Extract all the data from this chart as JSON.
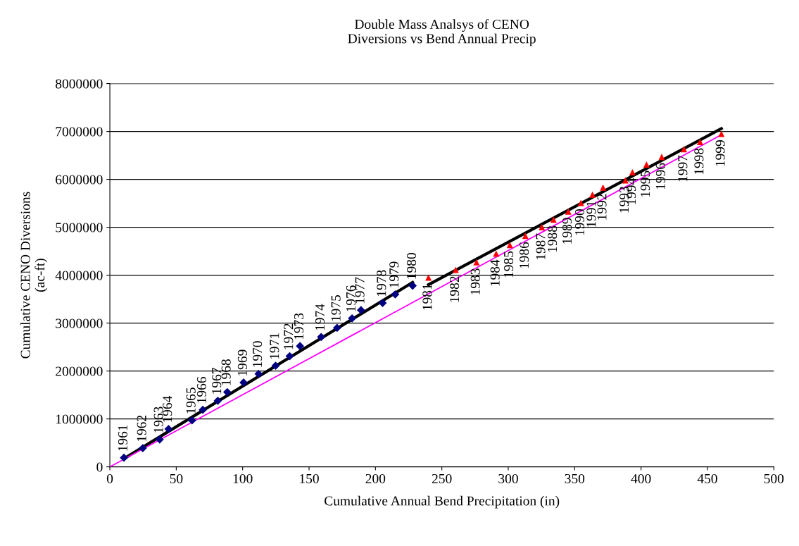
{
  "chart_data": {
    "type": "scatter",
    "title": "Double Mass Analsys of CENO\nDiversions vs Bend Annual Precip",
    "xlabel": "Cumulative Annual Bend Precipitation (in)",
    "ylabel": "Cumulative CENO Diversions\n(ac-ft)",
    "series": [
      {
        "color": "#000080",
        "marker": "diamond",
        "x": [
          10.6,
          24.8,
          37.5,
          44.2,
          61.9,
          70.0,
          81.3,
          88.4,
          100.7,
          112.0,
          124.8,
          135.4,
          143.2,
          159.1,
          171.1,
          182.4,
          189.1,
          205.4,
          214.9,
          228.0
        ],
        "values": [
          190000,
          390000,
          570000,
          790000,
          970000,
          1190000,
          1380000,
          1560000,
          1760000,
          1940000,
          2110000,
          2310000,
          2520000,
          2710000,
          2900000,
          3100000,
          3270000,
          3420000,
          3600000,
          3780000
        ]
      },
      {
        "color": "#ff0000",
        "marker": "triangle",
        "x": [
          239.9,
          260.4,
          276.1,
          290.9,
          301.2,
          312.9,
          325.3,
          334.1,
          345.2,
          354.7,
          363.4,
          371.4,
          388.2,
          393.5,
          404.1,
          415.6,
          432.3,
          444.5,
          460.5
        ],
        "values": [
          3950000,
          4110000,
          4270000,
          4450000,
          4630000,
          4820000,
          5000000,
          5160000,
          5330000,
          5510000,
          5680000,
          5830000,
          5980000,
          6150000,
          6310000,
          6470000,
          6630000,
          6780000,
          6950000
        ]
      },
      {
        "type": "line",
        "color": "#000000",
        "x": [
          10.6,
          228.0
        ],
        "values": [
          170000,
          3850000
        ]
      },
      {
        "type": "line",
        "color": "#000000",
        "x": [
          239.9,
          460.5
        ],
        "values": [
          3800000,
          7060000
        ]
      },
      {
        "type": "line",
        "color": "#ff00ff",
        "x": [
          0,
          460.5
        ],
        "values": [
          0,
          6930000
        ]
      }
    ],
    "annotations": [
      {
        "text": "1961",
        "x": 10.6,
        "y": 190000
      },
      {
        "text": "1962",
        "x": 24.8,
        "y": 390000
      },
      {
        "text": "1963",
        "x": 37.5,
        "y": 570000
      },
      {
        "text": "1964",
        "x": 44.2,
        "y": 790000
      },
      {
        "text": "1965",
        "x": 61.9,
        "y": 970000
      },
      {
        "text": "1966",
        "x": 70.0,
        "y": 1190000
      },
      {
        "text": "1967",
        "x": 81.3,
        "y": 1380000
      },
      {
        "text": "1968",
        "x": 88.4,
        "y": 1560000
      },
      {
        "text": "1969",
        "x": 100.7,
        "y": 1760000
      },
      {
        "text": "1970",
        "x": 112.0,
        "y": 1940000
      },
      {
        "text": "1971",
        "x": 124.8,
        "y": 2110000
      },
      {
        "text": "1972",
        "x": 135.4,
        "y": 2310000
      },
      {
        "text": "1973",
        "x": 143.2,
        "y": 2520000
      },
      {
        "text": "1974",
        "x": 159.1,
        "y": 2710000
      },
      {
        "text": "1975",
        "x": 171.1,
        "y": 2900000
      },
      {
        "text": "1976",
        "x": 182.4,
        "y": 3100000
      },
      {
        "text": "1977",
        "x": 189.1,
        "y": 3270000
      },
      {
        "text": "1978",
        "x": 205.4,
        "y": 3420000
      },
      {
        "text": "1979",
        "x": 214.9,
        "y": 3600000
      },
      {
        "text": "1980",
        "x": 228.0,
        "y": 3780000
      },
      {
        "text": "1981",
        "x": 239.9,
        "y": 3950000
      },
      {
        "text": "1982",
        "x": 260.4,
        "y": 4110000
      },
      {
        "text": "1983",
        "x": 276.1,
        "y": 4270000
      },
      {
        "text": "1984",
        "x": 290.9,
        "y": 4450000
      },
      {
        "text": "1985",
        "x": 301.2,
        "y": 4630000
      },
      {
        "text": "1986",
        "x": 312.9,
        "y": 4820000
      },
      {
        "text": "1987",
        "x": 325.3,
        "y": 5000000
      },
      {
        "text": "1988",
        "x": 334.1,
        "y": 5160000
      },
      {
        "text": "1989",
        "x": 345.2,
        "y": 5330000
      },
      {
        "text": "1990",
        "x": 354.7,
        "y": 5510000
      },
      {
        "text": "1991",
        "x": 363.4,
        "y": 5680000
      },
      {
        "text": "1992",
        "x": 371.4,
        "y": 5830000
      },
      {
        "text": "1993",
        "x": 388.2,
        "y": 5980000
      },
      {
        "text": "1994",
        "x": 393.5,
        "y": 6150000
      },
      {
        "text": "1995",
        "x": 404.1,
        "y": 6310000
      },
      {
        "text": "1996",
        "x": 415.6,
        "y": 6470000
      },
      {
        "text": "1997",
        "x": 432.3,
        "y": 6630000
      },
      {
        "text": "1998",
        "x": 444.5,
        "y": 6780000
      },
      {
        "text": "1999",
        "x": 460.5,
        "y": 6950000
      }
    ],
    "xlim": [
      0,
      500
    ],
    "xticks": [
      0,
      50,
      100,
      150,
      200,
      250,
      300,
      350,
      400,
      450,
      500
    ],
    "ylim": [
      0,
      8000000
    ],
    "yticks": [
      0,
      1000000,
      2000000,
      3000000,
      4000000,
      5000000,
      6000000,
      7000000,
      8000000
    ],
    "grid": "y",
    "legend": false
  }
}
